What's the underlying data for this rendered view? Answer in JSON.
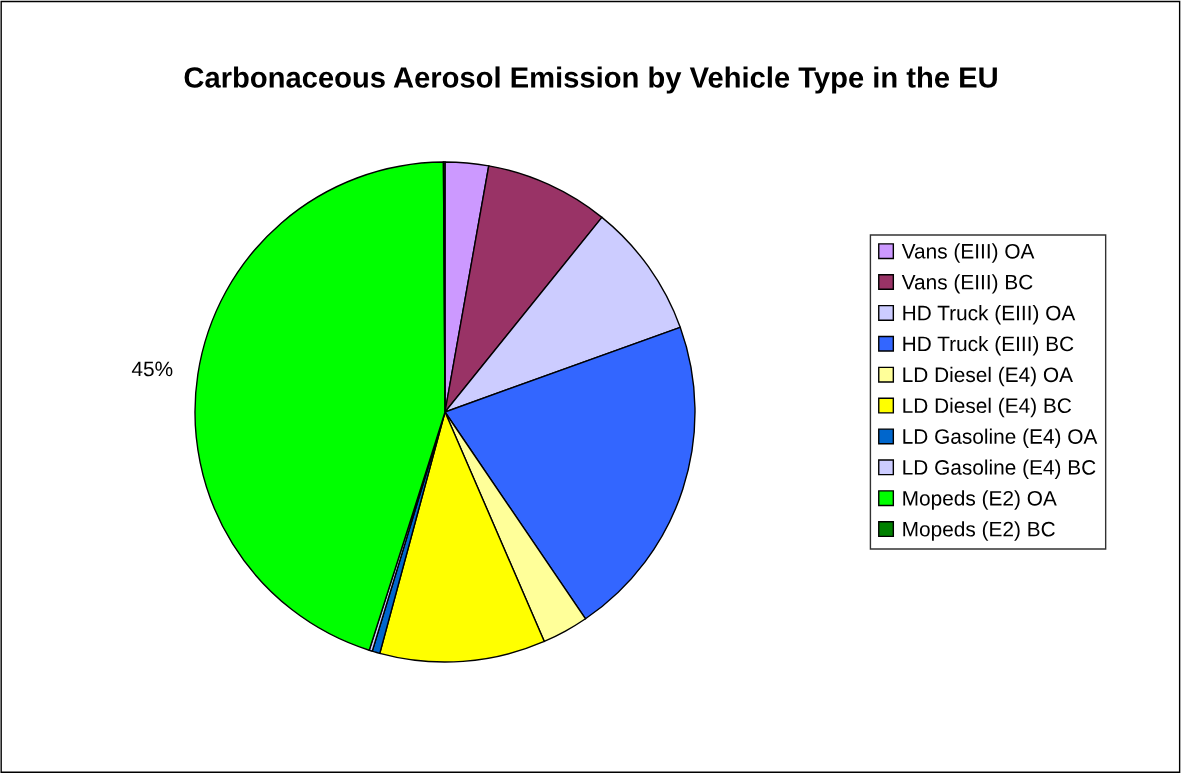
{
  "chart_data": {
    "type": "pie",
    "title": "Carbonaceous Aerosol Emission by Vehicle Type in the EU",
    "categories": [
      "Vans (EIII) OA",
      "Vans (EIII) BC",
      "HD Truck (EIII) OA",
      "HD Truck (EIII) BC",
      "LD Diesel (E4) OA",
      "LD Diesel (E4) BC",
      "LD Gasoline (E4) OA",
      "LD Gasoline (E4) BC",
      "Mopeds (E2) OA",
      "Mopeds (E2) BC"
    ],
    "values": [
      2.8,
      8,
      8.7,
      21,
      3,
      10.7,
      0.5,
      0.2,
      45,
      0.1
    ],
    "colors": [
      "#cc99ff",
      "#993366",
      "#ccccff",
      "#3366ff",
      "#ffff99",
      "#ffff00",
      "#0066cc",
      "#ccccff",
      "#00ff00",
      "#008000"
    ],
    "value_labels": [
      null,
      null,
      null,
      null,
      null,
      null,
      null,
      null,
      "45%",
      null
    ],
    "legend": "right"
  }
}
